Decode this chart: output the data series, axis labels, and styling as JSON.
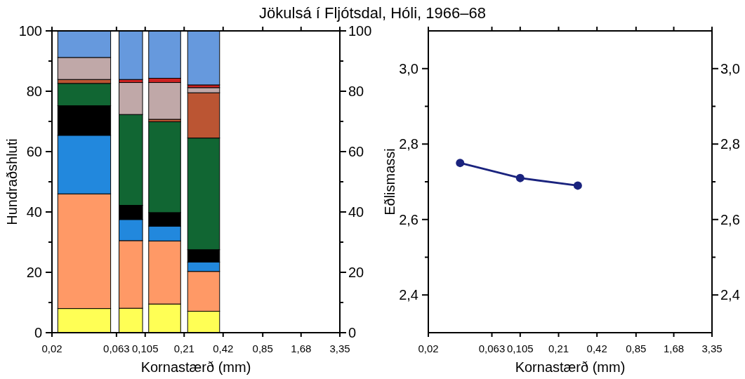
{
  "chart_data": [
    {
      "type": "bar",
      "stacked": true,
      "title": "Jökulsá í Fljótsdal, Hóli, 1966–68",
      "xlabel": "Kornastærð  (mm)",
      "ylabel": "Hundraðshluti",
      "log": "x",
      "x": [
        0.0355,
        0.0813,
        0.1485,
        0.297
      ],
      "xlim": [
        0.02,
        3.35
      ],
      "xticks": [
        {
          "value": 0.02,
          "label": "0,02"
        },
        {
          "value": 0.063,
          "label": "0,063"
        },
        {
          "value": 0.105,
          "label": "0,105"
        },
        {
          "value": 0.21,
          "label": "0,21"
        },
        {
          "value": 0.42,
          "label": "0,42"
        },
        {
          "value": 0.85,
          "label": "0,85"
        },
        {
          "value": 1.68,
          "label": "1,68"
        },
        {
          "value": 3.35,
          "label": "3,35"
        }
      ],
      "ylim": [
        0,
        100
      ],
      "yticks": [
        0,
        {
          "value": 10,
          "label": null
        },
        20,
        {
          "value": 30,
          "label": null
        },
        40,
        {
          "value": 50,
          "label": null
        },
        60,
        {
          "value": 70,
          "label": null
        },
        80,
        {
          "value": 90,
          "label": null
        },
        100
      ],
      "y2lim": [
        0,
        100
      ],
      "y2ticks": [
        0,
        {
          "value": 10,
          "label": null
        },
        20,
        {
          "value": 30,
          "label": null
        },
        40,
        {
          "value": 50,
          "label": null
        },
        60,
        {
          "value": 70,
          "label": null
        },
        80,
        {
          "value": 90,
          "label": null
        },
        100
      ],
      "series": [
        {
          "color": "#ffff55",
          "values": [
            8,
            8.1,
            9.5,
            7.1
          ]
        },
        {
          "color": "#ff9966",
          "values": [
            38,
            22.4,
            20.9,
            13.2
          ]
        },
        {
          "color": "#2288dd",
          "values": [
            19.4,
            7,
            4.9,
            3.1
          ]
        },
        {
          "color": "#000000",
          "values": [
            9.8,
            4.7,
            4.5,
            4.1
          ]
        },
        {
          "color": "#116633",
          "values": [
            7.4,
            30.1,
            30.1,
            37
          ]
        },
        {
          "color": "#bb5533",
          "values": [
            1.3,
            0,
            0.8,
            15
          ]
        },
        {
          "color": "#c0a8a8",
          "values": [
            7.3,
            10.6,
            12.2,
            1.7
          ]
        },
        {
          "color": "#cc2222",
          "values": [
            0,
            1,
            1.4,
            0.9
          ]
        },
        {
          "color": "#6699dd",
          "values": [
            8.8,
            16.1,
            15.7,
            17.9
          ]
        }
      ]
    },
    {
      "type": "line",
      "xlabel": "Kornastærð  (mm)",
      "ylabel": "Eðlismassi",
      "marker": "circle",
      "line_style": "solid",
      "log": "x",
      "x": [
        0.0355,
        0.105,
        0.297
      ],
      "xlim": [
        0.02,
        3.35
      ],
      "xticks": [
        {
          "value": 0.02,
          "label": "0,02"
        },
        {
          "value": 0.063,
          "label": "0,063"
        },
        {
          "value": 0.105,
          "label": "0,105"
        },
        {
          "value": 0.21,
          "label": "0,21"
        },
        {
          "value": 0.42,
          "label": "0,42"
        },
        {
          "value": 0.85,
          "label": "0,85"
        },
        {
          "value": 1.68,
          "label": "1,68"
        },
        {
          "value": 3.35,
          "label": "3,35"
        }
      ],
      "ylim": [
        2.3,
        3.1
      ],
      "yticks": [
        {
          "value": 2.4,
          "label": "2,4"
        },
        {
          "value": 2.5,
          "label": null
        },
        {
          "value": 2.6,
          "label": "2,6"
        },
        {
          "value": 2.7,
          "label": null
        },
        {
          "value": 2.8,
          "label": "2,8"
        },
        {
          "value": 2.9,
          "label": null
        },
        {
          "value": 3.0,
          "label": "3,0"
        }
      ],
      "y2lim": [
        2.3,
        3.1
      ],
      "y2ticks": [
        {
          "value": 2.4,
          "label": "2,4"
        },
        {
          "value": 2.5,
          "label": null
        },
        {
          "value": 2.6,
          "label": "2,6"
        },
        {
          "value": 2.7,
          "label": null
        },
        {
          "value": 2.8,
          "label": "2,8"
        },
        {
          "value": 2.9,
          "label": null
        },
        {
          "value": 3.0,
          "label": "3,0"
        }
      ],
      "series": [
        {
          "color": "#1a237e",
          "values": [
            2.75,
            2.71,
            2.69
          ]
        }
      ]
    }
  ]
}
